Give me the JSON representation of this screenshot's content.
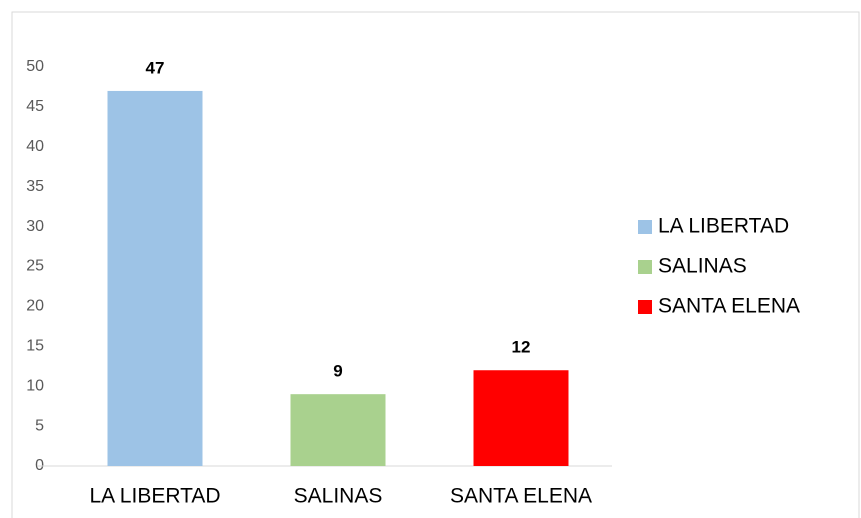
{
  "chart_data": {
    "type": "bar",
    "categories": [
      "LA LIBERTAD",
      "SALINAS",
      "SANTA ELENA"
    ],
    "values": [
      47,
      9,
      12
    ],
    "colors": [
      "#9dc3e6",
      "#a9d18e",
      "#ff0000"
    ],
    "ylim": [
      0,
      50
    ],
    "yticks": [
      0,
      5,
      10,
      15,
      20,
      25,
      30,
      35,
      40,
      45,
      50
    ],
    "grid": false,
    "legend": "right"
  }
}
